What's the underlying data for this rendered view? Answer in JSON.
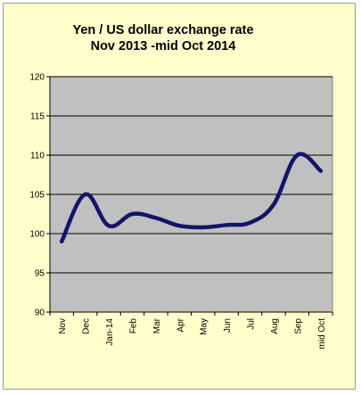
{
  "chart_data": {
    "type": "line",
    "title_lines": [
      "Yen / US dollar exchange rate",
      "Nov 2013 -mid  Oct 2014"
    ],
    "xlabel": "",
    "ylabel": "",
    "categories": [
      "Nov",
      "Dec",
      "Jan-14",
      "Feb",
      "Mar",
      "Apr",
      "May",
      "Jun",
      "Jul",
      "Aug",
      "Sep",
      "mid Oct"
    ],
    "series": [
      {
        "values": [
          99.0,
          105.0,
          101.0,
          102.5,
          102.0,
          101.0,
          100.8,
          101.1,
          101.4,
          103.7,
          110.0,
          108.0
        ]
      }
    ],
    "ylim": [
      90,
      120
    ],
    "yticks": [
      90,
      95,
      100,
      105,
      110,
      115,
      120
    ],
    "grid": true,
    "legend": "none",
    "colors": {
      "line": "#14146b",
      "plot_background": "#c0c0c0",
      "chart_background": "#ffffcc",
      "gridline": "#000000"
    }
  }
}
